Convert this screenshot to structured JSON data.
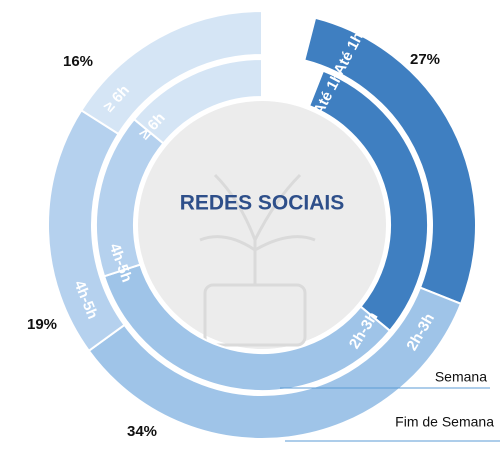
{
  "chart_data": {
    "type": "donut",
    "title": "REDES SOCIAIS",
    "categories": [
      "Até 1h",
      "2h-3h",
      "4h-5h",
      "≥ 6h"
    ],
    "colors": [
      "#3f7fc1",
      "#9fc4e8",
      "#b5d1ee",
      "#d5e5f5"
    ],
    "series": [
      {
        "name": "Semana",
        "values": [
          30,
          34,
          16,
          14
        ]
      },
      {
        "name": "Fim de Semana",
        "values": [
          27,
          34,
          19,
          16
        ],
        "value_labels": [
          "27%",
          "34%",
          "19%",
          "16%"
        ]
      }
    ]
  }
}
